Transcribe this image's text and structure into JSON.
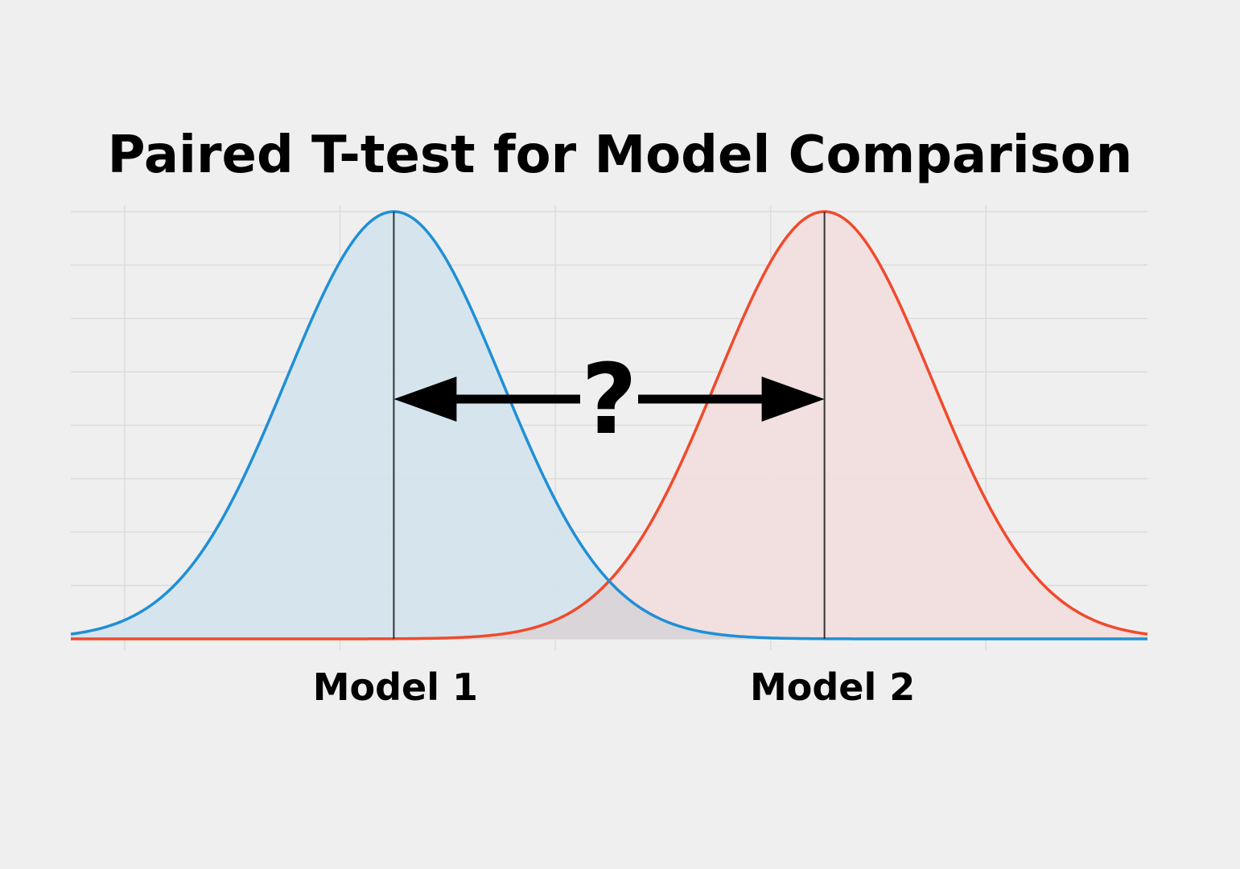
{
  "title": "Paired T-test for Model Comparison",
  "question_mark": "?",
  "colors": {
    "background": "#efefef",
    "grid": "#dcdcdc",
    "model1_line": "#1f8fd6",
    "model1_fill": "#d4e4ec",
    "model2_line": "#f04a2c",
    "model2_fill": "#f0dedd",
    "overlap_fill": "#d9d5d8",
    "mean_line": "#333333",
    "arrow": "#000000",
    "text": "#000000"
  },
  "chart_data": {
    "type": "area",
    "title": "Paired T-test for Model Comparison",
    "xlabel": "",
    "ylabel": "",
    "grid": true,
    "xlim": [
      -3.0,
      7.0
    ],
    "series": [
      {
        "name": "Model 1",
        "distribution": "normal",
        "mean": 0,
        "sd": 1
      },
      {
        "name": "Model 2",
        "distribution": "normal",
        "mean": 4,
        "sd": 1
      }
    ],
    "annotations": [
      {
        "type": "double-arrow",
        "from_series": "Model 1",
        "to_series": "Model 2",
        "label": "?"
      }
    ]
  }
}
